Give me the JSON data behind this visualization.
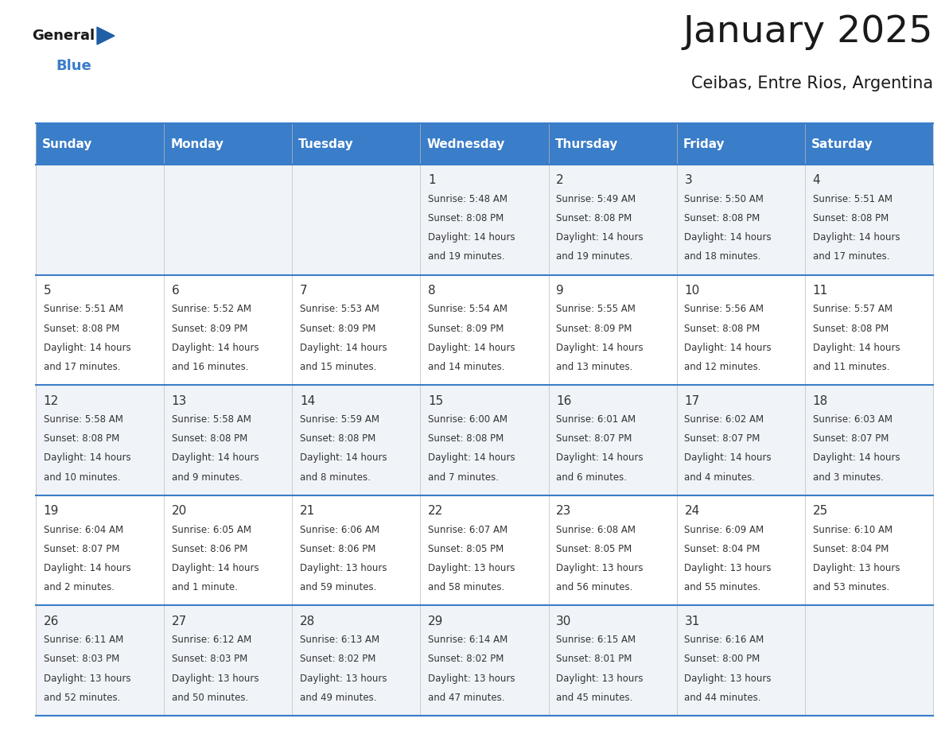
{
  "title": "January 2025",
  "subtitle": "Ceibas, Entre Rios, Argentina",
  "days_of_week": [
    "Sunday",
    "Monday",
    "Tuesday",
    "Wednesday",
    "Thursday",
    "Friday",
    "Saturday"
  ],
  "header_bg": "#3A7DC9",
  "header_text": "#FFFFFF",
  "cell_bg_odd": "#F0F4F8",
  "cell_bg_even": "#FFFFFF",
  "cell_text": "#333333",
  "line_color": "#3A7DC9",
  "days": [
    {
      "day": 1,
      "col": 3,
      "row": 0,
      "sunrise": "5:48 AM",
      "sunset": "8:08 PM",
      "daylight": "14 hours and 19 minutes."
    },
    {
      "day": 2,
      "col": 4,
      "row": 0,
      "sunrise": "5:49 AM",
      "sunset": "8:08 PM",
      "daylight": "14 hours and 19 minutes."
    },
    {
      "day": 3,
      "col": 5,
      "row": 0,
      "sunrise": "5:50 AM",
      "sunset": "8:08 PM",
      "daylight": "14 hours and 18 minutes."
    },
    {
      "day": 4,
      "col": 6,
      "row": 0,
      "sunrise": "5:51 AM",
      "sunset": "8:08 PM",
      "daylight": "14 hours and 17 minutes."
    },
    {
      "day": 5,
      "col": 0,
      "row": 1,
      "sunrise": "5:51 AM",
      "sunset": "8:08 PM",
      "daylight": "14 hours and 17 minutes."
    },
    {
      "day": 6,
      "col": 1,
      "row": 1,
      "sunrise": "5:52 AM",
      "sunset": "8:09 PM",
      "daylight": "14 hours and 16 minutes."
    },
    {
      "day": 7,
      "col": 2,
      "row": 1,
      "sunrise": "5:53 AM",
      "sunset": "8:09 PM",
      "daylight": "14 hours and 15 minutes."
    },
    {
      "day": 8,
      "col": 3,
      "row": 1,
      "sunrise": "5:54 AM",
      "sunset": "8:09 PM",
      "daylight": "14 hours and 14 minutes."
    },
    {
      "day": 9,
      "col": 4,
      "row": 1,
      "sunrise": "5:55 AM",
      "sunset": "8:09 PM",
      "daylight": "14 hours and 13 minutes."
    },
    {
      "day": 10,
      "col": 5,
      "row": 1,
      "sunrise": "5:56 AM",
      "sunset": "8:08 PM",
      "daylight": "14 hours and 12 minutes."
    },
    {
      "day": 11,
      "col": 6,
      "row": 1,
      "sunrise": "5:57 AM",
      "sunset": "8:08 PM",
      "daylight": "14 hours and 11 minutes."
    },
    {
      "day": 12,
      "col": 0,
      "row": 2,
      "sunrise": "5:58 AM",
      "sunset": "8:08 PM",
      "daylight": "14 hours and 10 minutes."
    },
    {
      "day": 13,
      "col": 1,
      "row": 2,
      "sunrise": "5:58 AM",
      "sunset": "8:08 PM",
      "daylight": "14 hours and 9 minutes."
    },
    {
      "day": 14,
      "col": 2,
      "row": 2,
      "sunrise": "5:59 AM",
      "sunset": "8:08 PM",
      "daylight": "14 hours and 8 minutes."
    },
    {
      "day": 15,
      "col": 3,
      "row": 2,
      "sunrise": "6:00 AM",
      "sunset": "8:08 PM",
      "daylight": "14 hours and 7 minutes."
    },
    {
      "day": 16,
      "col": 4,
      "row": 2,
      "sunrise": "6:01 AM",
      "sunset": "8:07 PM",
      "daylight": "14 hours and 6 minutes."
    },
    {
      "day": 17,
      "col": 5,
      "row": 2,
      "sunrise": "6:02 AM",
      "sunset": "8:07 PM",
      "daylight": "14 hours and 4 minutes."
    },
    {
      "day": 18,
      "col": 6,
      "row": 2,
      "sunrise": "6:03 AM",
      "sunset": "8:07 PM",
      "daylight": "14 hours and 3 minutes."
    },
    {
      "day": 19,
      "col": 0,
      "row": 3,
      "sunrise": "6:04 AM",
      "sunset": "8:07 PM",
      "daylight": "14 hours and 2 minutes."
    },
    {
      "day": 20,
      "col": 1,
      "row": 3,
      "sunrise": "6:05 AM",
      "sunset": "8:06 PM",
      "daylight": "14 hours and 1 minute."
    },
    {
      "day": 21,
      "col": 2,
      "row": 3,
      "sunrise": "6:06 AM",
      "sunset": "8:06 PM",
      "daylight": "13 hours and 59 minutes."
    },
    {
      "day": 22,
      "col": 3,
      "row": 3,
      "sunrise": "6:07 AM",
      "sunset": "8:05 PM",
      "daylight": "13 hours and 58 minutes."
    },
    {
      "day": 23,
      "col": 4,
      "row": 3,
      "sunrise": "6:08 AM",
      "sunset": "8:05 PM",
      "daylight": "13 hours and 56 minutes."
    },
    {
      "day": 24,
      "col": 5,
      "row": 3,
      "sunrise": "6:09 AM",
      "sunset": "8:04 PM",
      "daylight": "13 hours and 55 minutes."
    },
    {
      "day": 25,
      "col": 6,
      "row": 3,
      "sunrise": "6:10 AM",
      "sunset": "8:04 PM",
      "daylight": "13 hours and 53 minutes."
    },
    {
      "day": 26,
      "col": 0,
      "row": 4,
      "sunrise": "6:11 AM",
      "sunset": "8:03 PM",
      "daylight": "13 hours and 52 minutes."
    },
    {
      "day": 27,
      "col": 1,
      "row": 4,
      "sunrise": "6:12 AM",
      "sunset": "8:03 PM",
      "daylight": "13 hours and 50 minutes."
    },
    {
      "day": 28,
      "col": 2,
      "row": 4,
      "sunrise": "6:13 AM",
      "sunset": "8:02 PM",
      "daylight": "13 hours and 49 minutes."
    },
    {
      "day": 29,
      "col": 3,
      "row": 4,
      "sunrise": "6:14 AM",
      "sunset": "8:02 PM",
      "daylight": "13 hours and 47 minutes."
    },
    {
      "day": 30,
      "col": 4,
      "row": 4,
      "sunrise": "6:15 AM",
      "sunset": "8:01 PM",
      "daylight": "13 hours and 45 minutes."
    },
    {
      "day": 31,
      "col": 5,
      "row": 4,
      "sunrise": "6:16 AM",
      "sunset": "8:00 PM",
      "daylight": "13 hours and 44 minutes."
    }
  ]
}
